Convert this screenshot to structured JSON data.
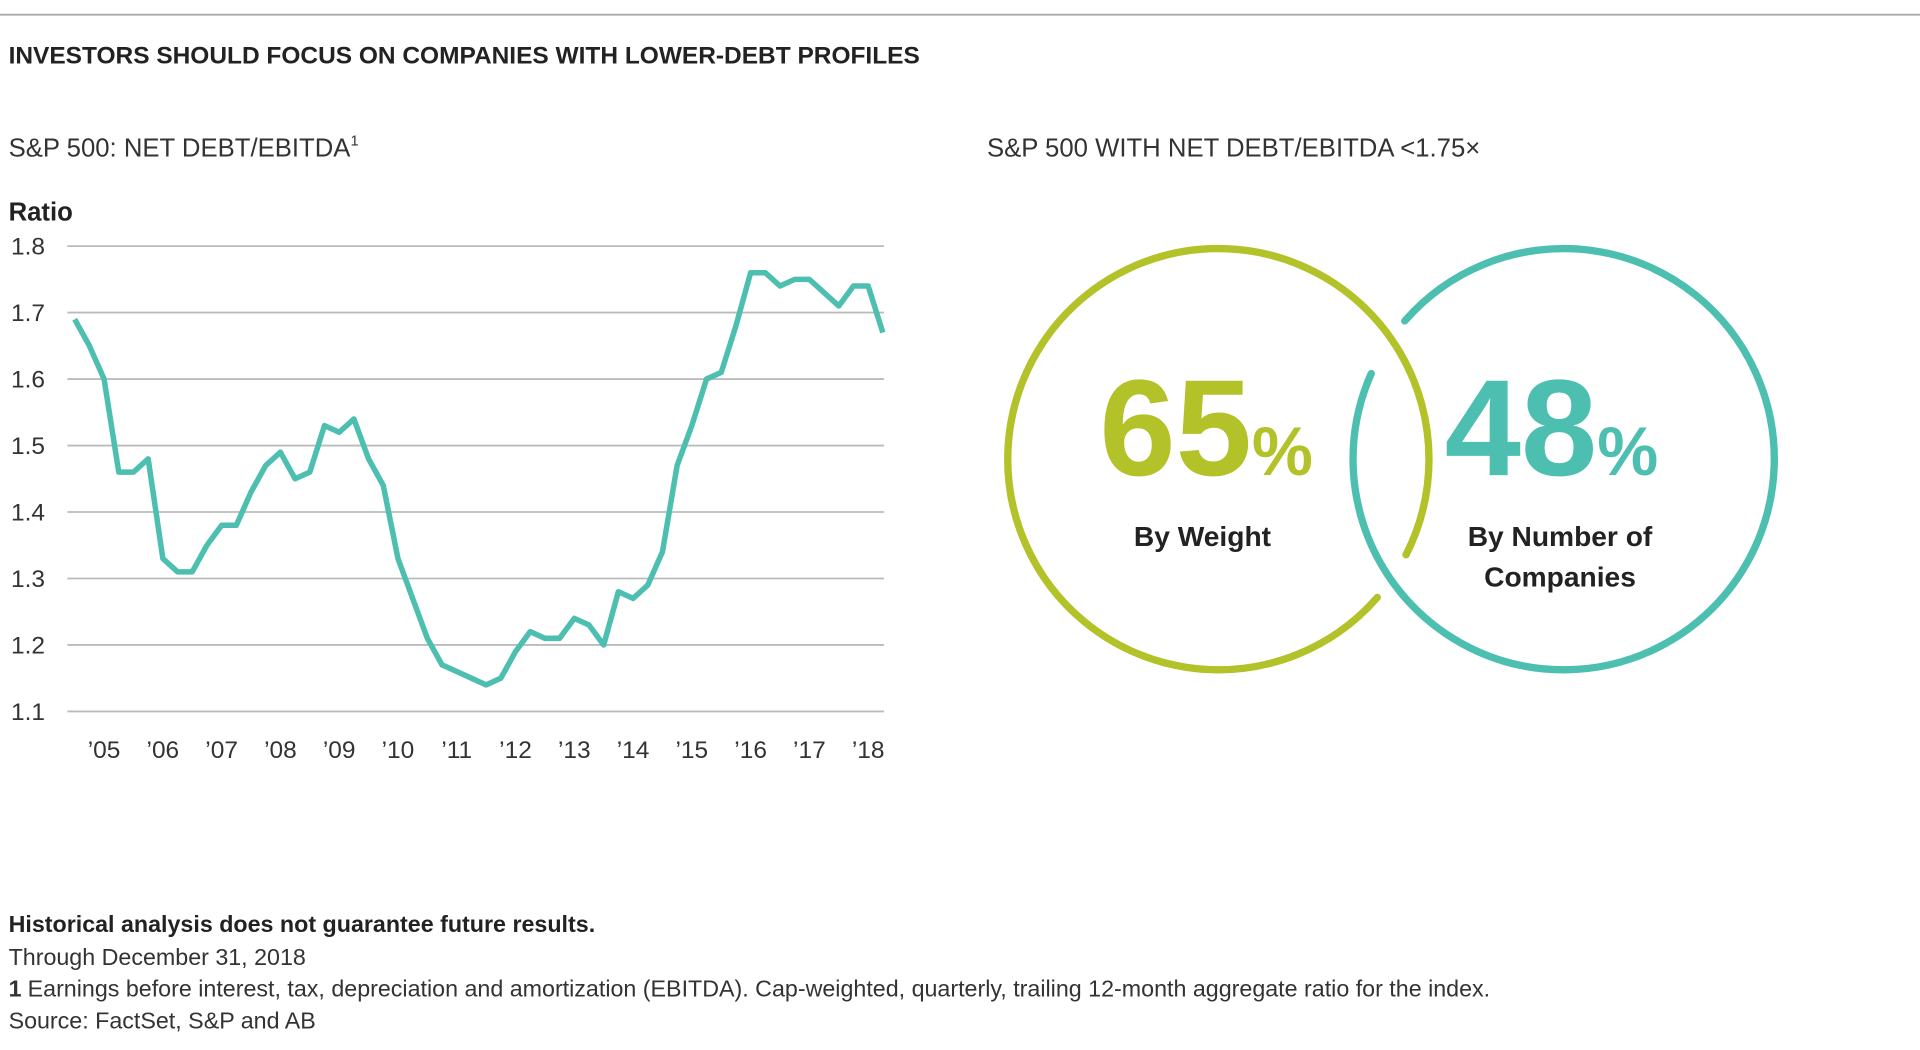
{
  "title": "INVESTORS SHOULD FOCUS ON COMPANIES WITH LOWER-DEBT PROFILES",
  "chart_data": [
    {
      "type": "line",
      "title": "S&P 500: NET DEBT/EBITDA",
      "title_note": "1",
      "ylabel": "Ratio",
      "color": "#4dbfb0",
      "grid": true,
      "categories": [
        null,
        null,
        "’05",
        null,
        null,
        null,
        "’06",
        null,
        null,
        null,
        "’07",
        null,
        null,
        null,
        "’08",
        null,
        null,
        null,
        "’09",
        null,
        null,
        null,
        "’10",
        null,
        null,
        null,
        "’11",
        null,
        null,
        null,
        "’12",
        null,
        null,
        null,
        "’13",
        null,
        null,
        null,
        "’14",
        null,
        null,
        null,
        "’15",
        null,
        null,
        null,
        "’16",
        null,
        null,
        null,
        "’17",
        null,
        null,
        null,
        "’18",
        null
      ],
      "values": [
        1.69,
        1.65,
        1.6,
        1.46,
        1.46,
        1.48,
        1.33,
        1.31,
        1.31,
        1.35,
        1.38,
        1.38,
        1.43,
        1.47,
        1.49,
        1.45,
        1.46,
        1.53,
        1.52,
        1.54,
        1.48,
        1.44,
        1.33,
        1.27,
        1.21,
        1.17,
        1.16,
        1.15,
        1.14,
        1.15,
        1.19,
        1.22,
        1.21,
        1.21,
        1.24,
        1.23,
        1.2,
        1.28,
        1.27,
        1.29,
        1.34,
        1.47,
        1.53,
        1.6,
        1.61,
        1.68,
        1.76,
        1.76,
        1.74,
        1.75,
        1.75,
        1.73,
        1.71,
        1.74,
        1.74,
        1.67
      ],
      "ylim": [
        1.1,
        1.8
      ],
      "yticks": [
        {
          "value": 1.1,
          "label": "1.1"
        },
        {
          "value": 1.2,
          "label": "1.2"
        },
        {
          "value": 1.3,
          "label": "1.3"
        },
        {
          "value": 1.4,
          "label": "1.4"
        },
        {
          "value": 1.5,
          "label": "1.5"
        },
        {
          "value": 1.6,
          "label": "1.6"
        },
        {
          "value": 1.7,
          "label": "1.7"
        },
        {
          "value": 1.8,
          "label": "1.8"
        }
      ]
    },
    {
      "type": "circles",
      "title": "S&P 500 WITH NET DEBT/EBITDA <1.75×",
      "categories": [
        "By Weight",
        "By Number of Companies"
      ],
      "values": [
        65,
        48
      ],
      "value_labels": [
        "65%",
        "48%"
      ],
      "colors": [
        "#b3c228",
        "#4dbfb0"
      ]
    }
  ],
  "footer": {
    "disclaimer": "Historical analysis does not guarantee future results.",
    "date": "Through December 31, 2018",
    "note_marker": "1",
    "note": "Earnings before interest, tax, depreciation and amortization (EBITDA). Cap-weighted, quarterly, trailing 12-month aggregate ratio for the index.",
    "source": "Source: FactSet, S&P and AB"
  }
}
